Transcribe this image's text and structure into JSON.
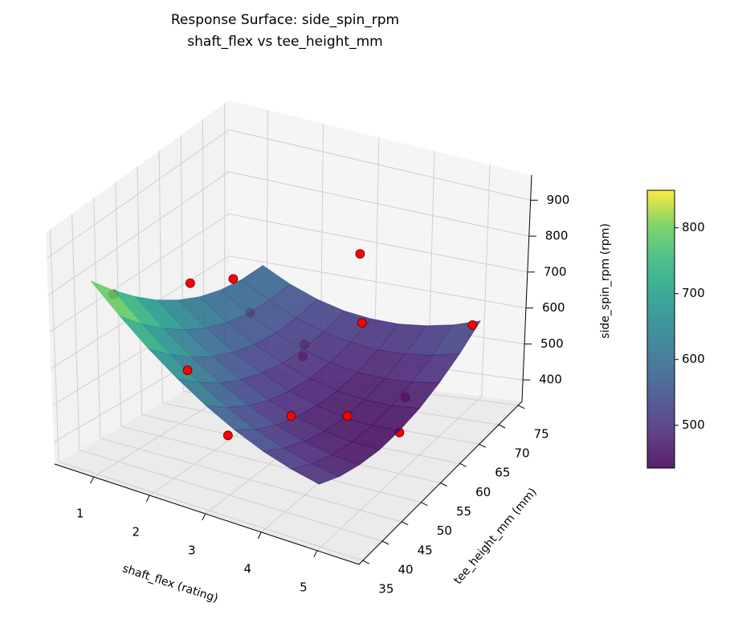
{
  "chart_data": {
    "type": "surface",
    "title": "Response Surface: side_spin_rpm",
    "subtitle": "shaft_flex vs tee_height_mm",
    "x_label": "shaft_flex (rating)",
    "y_label": "tee_height_mm (mm)",
    "z_label": "side_spin_rpm (rpm)",
    "xlim": [
      0.3,
      5.75
    ],
    "ylim": [
      34,
      76
    ],
    "zlim": [
      340,
      970
    ],
    "xticks": [
      1,
      2,
      3,
      4,
      5
    ],
    "yticks": [
      35,
      40,
      45,
      50,
      55,
      60,
      65,
      70,
      75
    ],
    "zticks": [
      400,
      500,
      600,
      700,
      800,
      900
    ],
    "grid": true,
    "colormap": "viridis",
    "surface": {
      "x": [
        1,
        1.5,
        2,
        2.5,
        3,
        3.5,
        4,
        4.5,
        5
      ],
      "y": [
        35,
        40,
        45,
        50,
        55,
        60,
        65,
        70,
        75
      ],
      "z": [
        [
          860,
          787,
          721,
          664,
          615,
          574,
          541,
          517,
          500
        ],
        [
          795,
          726,
          666,
          614,
          569,
          533,
          505,
          486,
          474
        ],
        [
          739,
          675,
          620,
          572,
          533,
          502,
          479,
          464,
          458
        ],
        [
          692,
          634,
          583,
          541,
          506,
          480,
          462,
          452,
          450
        ],
        [
          655,
          601,
          556,
          518,
          489,
          468,
          454,
          449,
          453
        ],
        [
          627,
          578,
          538,
          505,
          481,
          464,
          456,
          456,
          464
        ],
        [
          609,
          565,
          529,
          501,
          482,
          470,
          467,
          472,
          485
        ],
        [
          600,
          561,
          530,
          507,
          493,
          486,
          488,
          497,
          515
        ],
        [
          600,
          566,
          540,
          522,
          513,
          511,
          518,
          532,
          555
        ]
      ]
    },
    "points": {
      "color": "#ff0000",
      "x": [
        1,
        2,
        2,
        1,
        3,
        2,
        2.5,
        3.5,
        5,
        2.3,
        3,
        4,
        4.2,
        4.6,
        5
      ],
      "y": [
        40,
        45,
        55,
        72,
        72,
        72,
        65,
        66,
        73,
        40,
        40,
        42,
        53,
        62,
        55
      ],
      "z": [
        784,
        813,
        744,
        505,
        704,
        449,
        483,
        590,
        563,
        637,
        496,
        571,
        482,
        462,
        448
      ]
    },
    "colorbar": {
      "lim": [
        435,
        857
      ],
      "ticks": [
        500,
        600,
        700,
        800
      ]
    }
  }
}
